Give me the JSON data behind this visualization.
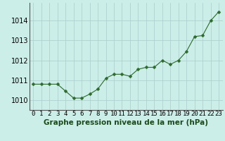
{
  "x": [
    0,
    1,
    2,
    3,
    4,
    5,
    6,
    7,
    8,
    9,
    10,
    11,
    12,
    13,
    14,
    15,
    16,
    17,
    18,
    19,
    20,
    21,
    22,
    23
  ],
  "y": [
    1010.8,
    1010.8,
    1010.8,
    1010.8,
    1010.45,
    1010.1,
    1010.1,
    1010.3,
    1010.55,
    1011.1,
    1011.3,
    1011.3,
    1011.2,
    1011.55,
    1011.65,
    1011.65,
    1012.0,
    1011.8,
    1012.0,
    1012.45,
    1013.2,
    1013.25,
    1014.0,
    1014.45
  ],
  "line_color": "#2d6a2d",
  "marker": "D",
  "marker_size": 2.5,
  "bg_color": "#cceee8",
  "grid_color": "#aacccc",
  "ylabel_ticks": [
    1010,
    1011,
    1012,
    1013,
    1014
  ],
  "xlabel": "Graphe pression niveau de la mer (hPa)",
  "ylim": [
    1009.5,
    1014.9
  ],
  "xlim": [
    -0.5,
    23.5
  ],
  "label_fontsize": 7.5,
  "tick_fontsize": 6.5,
  "y_tick_fontsize": 7
}
